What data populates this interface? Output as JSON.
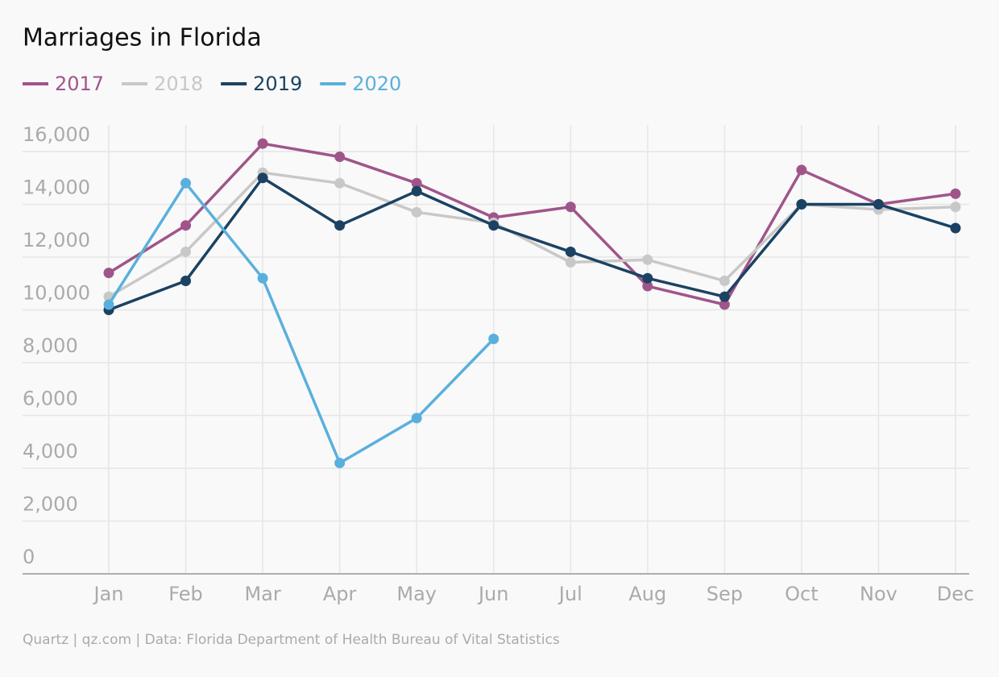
{
  "chart_data": {
    "type": "line",
    "title": "Marriages in Florida",
    "source": "Quartz | qz.com | Data: Florida Department of Health Bureau of Vital Statistics",
    "categories": [
      "Jan",
      "Feb",
      "Mar",
      "Apr",
      "May",
      "Jun",
      "Jul",
      "Aug",
      "Sep",
      "Oct",
      "Nov",
      "Dec"
    ],
    "series": [
      {
        "name": "2017",
        "color": "#a0558a",
        "values": [
          11400,
          13200,
          16300,
          15800,
          14800,
          13500,
          13900,
          10900,
          10200,
          15300,
          14000,
          14400
        ]
      },
      {
        "name": "2018",
        "color": "#c8c8c8",
        "values": [
          10500,
          12200,
          15200,
          14800,
          13700,
          13300,
          11800,
          11900,
          11100,
          14000,
          13800,
          13900
        ]
      },
      {
        "name": "2019",
        "color": "#1b4262",
        "values": [
          10000,
          11100,
          15000,
          13200,
          14500,
          13200,
          12200,
          11200,
          10500,
          14000,
          14000,
          13100
        ]
      },
      {
        "name": "2020",
        "color": "#5ab0dc",
        "values": [
          10200,
          14800,
          11200,
          4200,
          5900,
          8900,
          null,
          null,
          null,
          null,
          null,
          null
        ]
      }
    ],
    "ylim": [
      0,
      16000
    ],
    "yticks": [
      0,
      {
        "value": 2000,
        "label": "2,000"
      },
      {
        "value": 4000,
        "label": "4,000"
      },
      {
        "value": 6000,
        "label": "6,000"
      },
      {
        "value": 8000,
        "label": "8,000"
      },
      {
        "value": 10000,
        "label": "10,000"
      },
      {
        "value": 12000,
        "label": "12,000"
      },
      {
        "value": 14000,
        "label": "14,000"
      },
      {
        "value": 16000,
        "label": "16,000"
      }
    ],
    "grid": true
  }
}
